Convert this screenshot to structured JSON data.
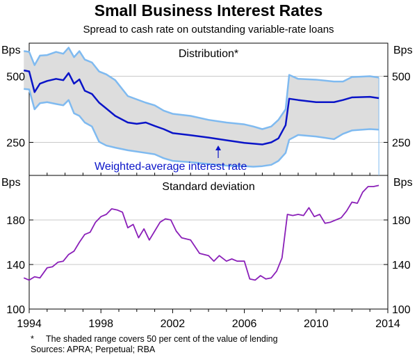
{
  "title": "Small Business Interest Rates",
  "subtitle": "Spread to cash rate on outstanding variable-rate loans",
  "footnotes": {
    "note_marker": "*",
    "note": "The shaded range covers 50 per cent of the value of lending",
    "sources": "Sources: APRA; Perpetual; RBA"
  },
  "colors": {
    "dark_line": "#0a14c8",
    "light_line": "#7fbaf0",
    "band": "#dddddd",
    "grid": "#c8c8c8"
  },
  "chart_data": [
    {
      "type": "area",
      "panel_title": "Distribution*",
      "annotation": "Weighted-average interest rate",
      "unit_label": "Bps",
      "ylim": [
        125,
        625
      ],
      "yticks": [
        250,
        500
      ],
      "xlim": [
        1994,
        2014
      ],
      "series": [
        {
          "name": "Upper bound",
          "x": [
            1993.7,
            1994.0,
            1994.3,
            1994.6,
            1995.0,
            1995.5,
            1995.9,
            1996.2,
            1996.5,
            1996.8,
            1997.1,
            1997.5,
            1997.9,
            1998.3,
            1998.8,
            1999.5,
            2000.5,
            2001.0,
            2001.5,
            2002.0,
            2003.0,
            2004.0,
            2005.0,
            2006.0,
            2006.5,
            2007.0,
            2007.5,
            2007.9,
            2008.3,
            2008.5,
            2009.0,
            2010.0,
            2011.0,
            2011.5,
            2012.0,
            2013.0,
            2013.5
          ],
          "values": [
            595,
            592,
            542,
            578,
            580,
            592,
            585,
            608,
            572,
            595,
            563,
            552,
            518,
            507,
            485,
            425,
            400,
            390,
            370,
            358,
            350,
            335,
            325,
            318,
            310,
            300,
            310,
            335,
            375,
            505,
            490,
            487,
            480,
            480,
            497,
            500,
            495
          ]
        },
        {
          "name": "Weighted-average interest rate",
          "x": [
            1993.7,
            1994.0,
            1994.3,
            1994.6,
            1995.0,
            1995.5,
            1995.9,
            1996.2,
            1996.5,
            1996.8,
            1997.1,
            1997.5,
            1997.9,
            1998.3,
            1998.8,
            1999.5,
            2000.0,
            2000.5,
            2001.0,
            2001.5,
            2002.0,
            2003.0,
            2004.0,
            2005.0,
            2006.0,
            2006.5,
            2007.0,
            2007.5,
            2007.9,
            2008.3,
            2008.5,
            2009.0,
            2010.0,
            2011.0,
            2011.5,
            2012.0,
            2013.0,
            2013.5
          ],
          "values": [
            522,
            518,
            440,
            472,
            482,
            490,
            485,
            512,
            472,
            488,
            445,
            433,
            400,
            378,
            350,
            325,
            320,
            325,
            312,
            300,
            285,
            277,
            268,
            258,
            248,
            245,
            242,
            250,
            265,
            315,
            415,
            410,
            402,
            402,
            410,
            420,
            422,
            417
          ]
        },
        {
          "name": "Lower bound",
          "x": [
            1993.7,
            1994.0,
            1994.3,
            1994.6,
            1995.0,
            1995.5,
            1995.9,
            1996.2,
            1996.5,
            1996.8,
            1997.1,
            1997.5,
            1997.9,
            1998.3,
            1998.8,
            1999.5,
            2000.5,
            2001.0,
            2001.5,
            2002.0,
            2003.0,
            2004.0,
            2005.0,
            2006.0,
            2006.5,
            2007.0,
            2007.5,
            2007.9,
            2008.3,
            2008.5,
            2009.0,
            2010.0,
            2011.0,
            2011.5,
            2012.0,
            2013.0,
            2013.5
          ],
          "values": [
            452,
            450,
            375,
            398,
            402,
            395,
            390,
            410,
            360,
            350,
            325,
            310,
            252,
            238,
            230,
            220,
            210,
            205,
            190,
            180,
            175,
            168,
            162,
            160,
            158,
            160,
            165,
            180,
            210,
            260,
            278,
            272,
            262,
            282,
            295,
            300,
            298
          ]
        }
      ]
    },
    {
      "type": "line",
      "panel_title": "Standard deviation",
      "unit_label": "Bps",
      "ylim": [
        100,
        220
      ],
      "yticks": [
        100,
        140,
        180
      ],
      "xlim": [
        1994,
        2014
      ],
      "x_tick_labels": [
        "1994",
        "1998",
        "2002",
        "2006",
        "2010",
        "2014"
      ],
      "series": [
        {
          "name": "Standard deviation",
          "x": [
            1993.7,
            1994.0,
            1994.3,
            1994.6,
            1995.0,
            1995.3,
            1995.6,
            1995.9,
            1996.2,
            1996.5,
            1996.8,
            1997.1,
            1997.4,
            1997.7,
            1998.0,
            1998.3,
            1998.6,
            1998.9,
            1999.2,
            1999.5,
            1999.8,
            2000.1,
            2000.4,
            2000.7,
            2001.0,
            2001.3,
            2001.6,
            2001.9,
            2002.2,
            2002.5,
            2003.0,
            2003.5,
            2004.0,
            2004.3,
            2004.6,
            2005.0,
            2005.3,
            2005.6,
            2006.0,
            2006.3,
            2006.6,
            2006.9,
            2007.2,
            2007.5,
            2007.8,
            2008.1,
            2008.4,
            2008.7,
            2009.0,
            2009.3,
            2009.6,
            2009.9,
            2010.2,
            2010.5,
            2010.8,
            2011.1,
            2011.4,
            2011.7,
            2012.0,
            2012.3,
            2012.6,
            2012.9,
            2013.2,
            2013.5
          ],
          "values": [
            128,
            126,
            129,
            128,
            137,
            138,
            142,
            143,
            149,
            152,
            160,
            167,
            169,
            178,
            183,
            185,
            190,
            189,
            187,
            173,
            176,
            164,
            172,
            162,
            170,
            178,
            181,
            180,
            170,
            164,
            162,
            150,
            148,
            143,
            148,
            143,
            145,
            143,
            143,
            127,
            126,
            130,
            127,
            128,
            134,
            146,
            185,
            184,
            185,
            184,
            191,
            183,
            185,
            177,
            178,
            180,
            182,
            188,
            196,
            195,
            205,
            210,
            210,
            211
          ]
        }
      ]
    }
  ]
}
